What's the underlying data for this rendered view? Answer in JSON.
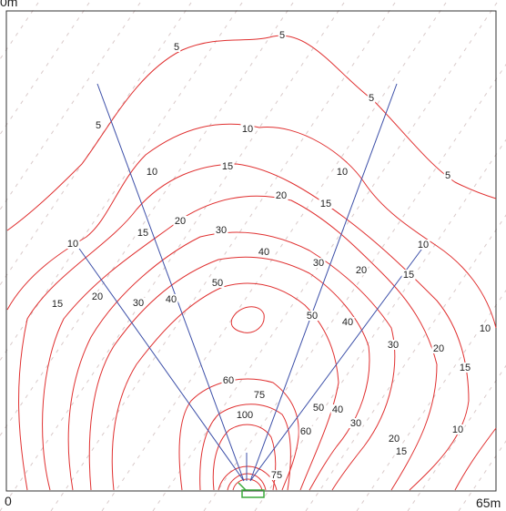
{
  "labels": {
    "origin": "0",
    "extent": "65m",
    "top_partial": "0m"
  },
  "colors": {
    "contour": "#e03030",
    "beam": "#3c4fa8",
    "frame": "#333333",
    "fixture": "#3aa83a",
    "watermark": "#cfc3c3"
  },
  "contour_levels": [
    "5",
    "10",
    "15",
    "20",
    "30",
    "40",
    "50",
    "60",
    "75",
    "100"
  ],
  "contour_labels": [
    {
      "text": "5"
    },
    {
      "text": "5"
    },
    {
      "text": "5"
    },
    {
      "text": "5"
    },
    {
      "text": "5"
    },
    {
      "text": "10"
    },
    {
      "text": "10"
    },
    {
      "text": "10"
    },
    {
      "text": "10"
    },
    {
      "text": "10"
    },
    {
      "text": "10"
    },
    {
      "text": "10"
    },
    {
      "text": "15"
    },
    {
      "text": "15"
    },
    {
      "text": "15"
    },
    {
      "text": "15"
    },
    {
      "text": "15"
    },
    {
      "text": "15"
    },
    {
      "text": "15"
    },
    {
      "text": "20"
    },
    {
      "text": "20"
    },
    {
      "text": "20"
    },
    {
      "text": "20"
    },
    {
      "text": "20"
    },
    {
      "text": "20"
    },
    {
      "text": "30"
    },
    {
      "text": "30"
    },
    {
      "text": "30"
    },
    {
      "text": "30"
    },
    {
      "text": "30"
    },
    {
      "text": "40"
    },
    {
      "text": "40"
    },
    {
      "text": "40"
    },
    {
      "text": "40"
    },
    {
      "text": "50"
    },
    {
      "text": "50"
    },
    {
      "text": "50"
    },
    {
      "text": "60"
    },
    {
      "text": "60"
    },
    {
      "text": "75"
    },
    {
      "text": "75"
    },
    {
      "text": "100"
    }
  ]
}
